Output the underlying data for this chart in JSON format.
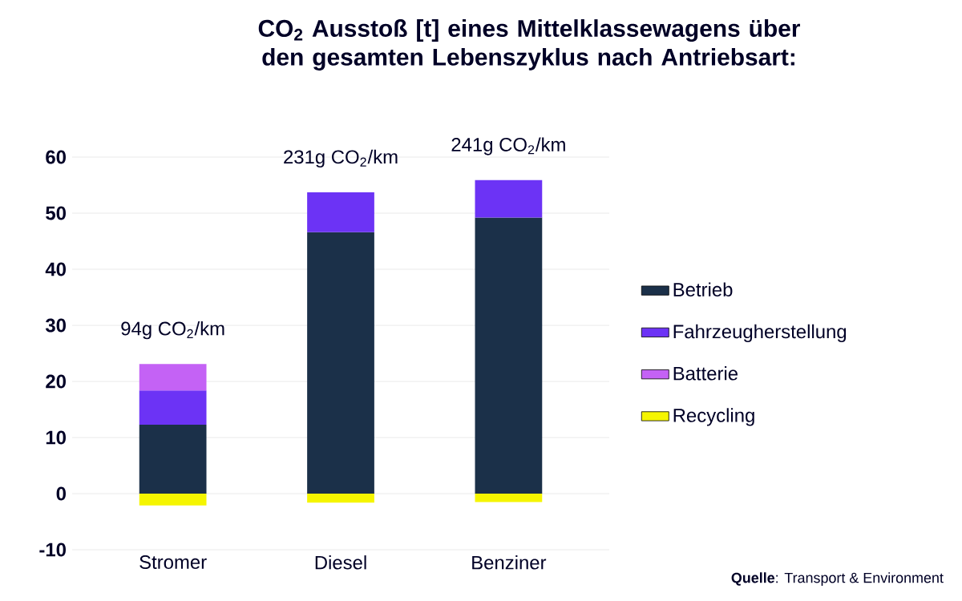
{
  "chart_data": {
    "type": "bar",
    "stacked": true,
    "title": "CO$_{2}$ Ausstoß [t] eines Mittelklassewagens über den gesamten Lebenszyklus nach Antriebsart:",
    "categories": [
      "Stromer",
      "Diesel",
      "Benziner"
    ],
    "series": [
      {
        "name": "Betrieb",
        "color": "#1b3049",
        "values": [
          12.3,
          46.6,
          49.2
        ]
      },
      {
        "name": "Fahrzeugherstellung",
        "color": "#6c33f5",
        "values": [
          6.1,
          7.1,
          6.7
        ]
      },
      {
        "name": "Batterie",
        "color": "#c462f5",
        "values": [
          4.7,
          null,
          null
        ]
      },
      {
        "name": "Recycling",
        "color": "#f5f500",
        "values": [
          -2.1,
          -1.6,
          -1.5
        ]
      }
    ],
    "ylim": [
      -10,
      60
    ],
    "yticks": [
      -10,
      0,
      10,
      20,
      30,
      40,
      50,
      60
    ],
    "grid": "y",
    "legend": "right",
    "annotations": [
      "94g CO$_{2}$/km",
      "231g CO$_{2}$/km",
      "241g CO$_{2}$/km",
      "**Quelle**: Transport & Environment"
    ]
  }
}
